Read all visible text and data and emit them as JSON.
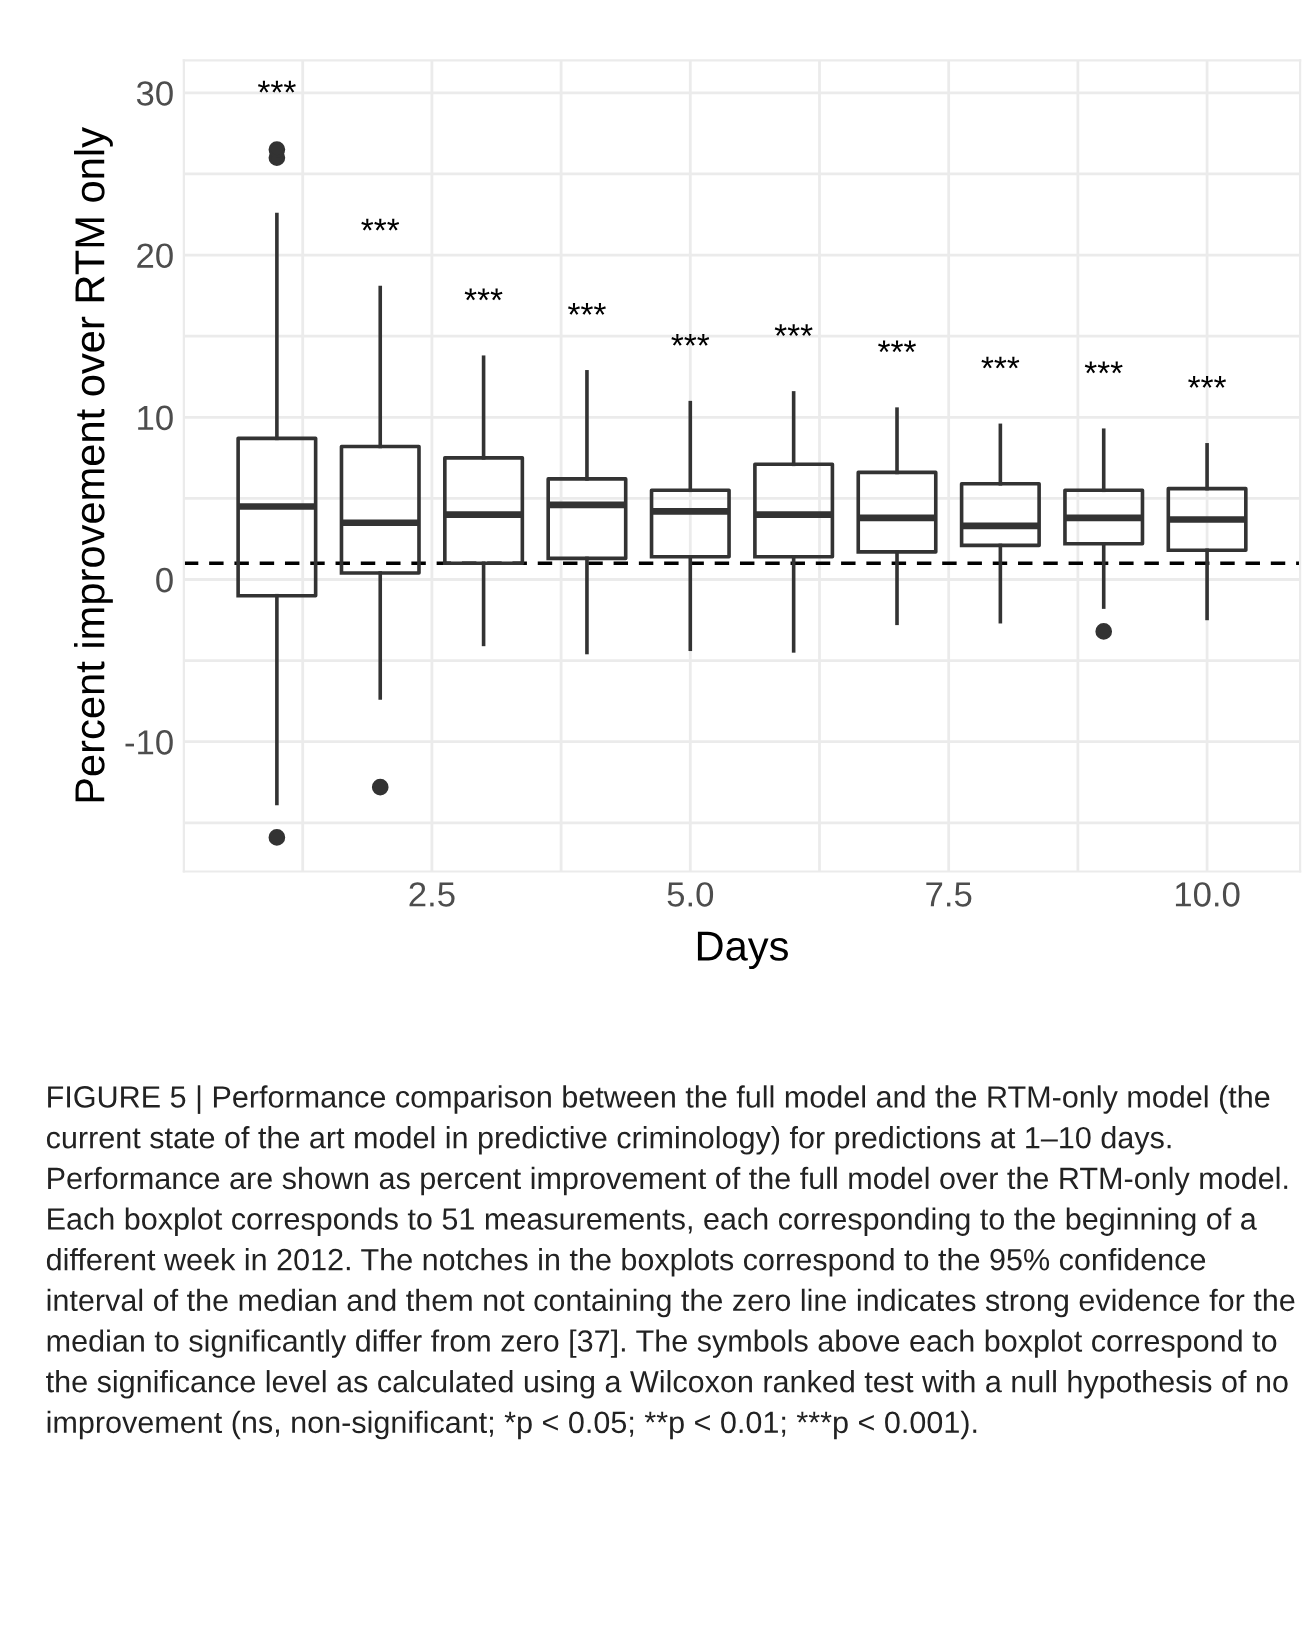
{
  "chart_data": {
    "type": "box",
    "x": [
      1,
      2,
      3,
      4,
      5,
      6,
      7,
      8,
      9,
      10
    ],
    "boxes": [
      {
        "low": -13.8,
        "q1": -1.0,
        "median": 4.5,
        "q3": 8.7,
        "high": 22.5,
        "outliers": [
          26.0,
          26.5,
          -15.9
        ]
      },
      {
        "low": -7.3,
        "q1": 0.4,
        "median": 3.5,
        "q3": 8.2,
        "high": 18.0,
        "outliers": [
          -12.8
        ]
      },
      {
        "low": -4.0,
        "q1": 1.0,
        "median": 4.0,
        "q3": 7.5,
        "high": 13.7
      },
      {
        "low": -4.5,
        "q1": 1.3,
        "median": 4.6,
        "q3": 6.2,
        "high": 12.8
      },
      {
        "low": -4.3,
        "q1": 1.4,
        "median": 4.2,
        "q3": 5.5,
        "high": 10.9
      },
      {
        "low": -4.4,
        "q1": 1.4,
        "median": 4.0,
        "q3": 7.1,
        "high": 11.5
      },
      {
        "low": -2.7,
        "q1": 1.7,
        "median": 3.8,
        "q3": 6.6,
        "high": 10.5
      },
      {
        "low": -2.6,
        "q1": 2.1,
        "median": 3.3,
        "q3": 5.9,
        "high": 9.5
      },
      {
        "low": -1.7,
        "q1": 2.2,
        "median": 3.8,
        "q3": 5.5,
        "high": 9.2,
        "outliers": [
          -3.2
        ]
      },
      {
        "low": -2.4,
        "q1": 1.8,
        "median": 3.7,
        "q3": 5.6,
        "high": 8.3
      }
    ],
    "color": "#333333",
    "xlabel": "Days",
    "ylabel": "Percent improvement over RTM only",
    "xlim": [
      0.1,
      10.9
    ],
    "xticks": [
      {
        "value": 1.25,
        "label": null
      },
      {
        "value": 2.5,
        "label": "2.5"
      },
      {
        "value": 3.75,
        "label": null
      },
      {
        "value": 5,
        "label": "5.0"
      },
      {
        "value": 6.25,
        "label": null
      },
      {
        "value": 7.5,
        "label": "7.5"
      },
      {
        "value": 8.75,
        "label": null
      },
      {
        "value": 10,
        "label": "10.0"
      }
    ],
    "ylim": [
      -18,
      32
    ],
    "yticks": [
      {
        "value": -15,
        "label": null
      },
      -10,
      {
        "value": -5,
        "label": null
      },
      0,
      {
        "value": 5,
        "label": null
      },
      10,
      {
        "value": 15,
        "label": null
      },
      20,
      {
        "value": 25,
        "label": null
      },
      30
    ],
    "grid": true,
    "ref_lines": [
      {
        "axis": "y",
        "value": 1,
        "line_style": "dashed",
        "color": "#000000"
      }
    ],
    "annotations": [
      "***",
      "***",
      "***",
      "***",
      "***",
      "***",
      "***",
      "***",
      "***",
      "***",
      "FIGURE 5 | Performance comparison between the full model and the RTM-only model (the current state of the art model in predictive criminology) for predictions at 1–10 days. Performance are shown as percent improvement of the full model over the RTM-only model. Each boxplot corresponds to 51 measurements, each corresponding to the beginning of a different week in 2012. The notches in the boxplots correspond to the 95% confidence interval of the median and them not containing the zero line indicates strong evidence for the median to significantly differ from zero [37]. The symbols above each boxplot correspond to the significance level as calculated using a Wilcoxon ranked test with a null hypothesis of no improvement (ns, non-significant; *p < 0.05; **p < 0.01; ***p < 0.001)."
    ]
  }
}
